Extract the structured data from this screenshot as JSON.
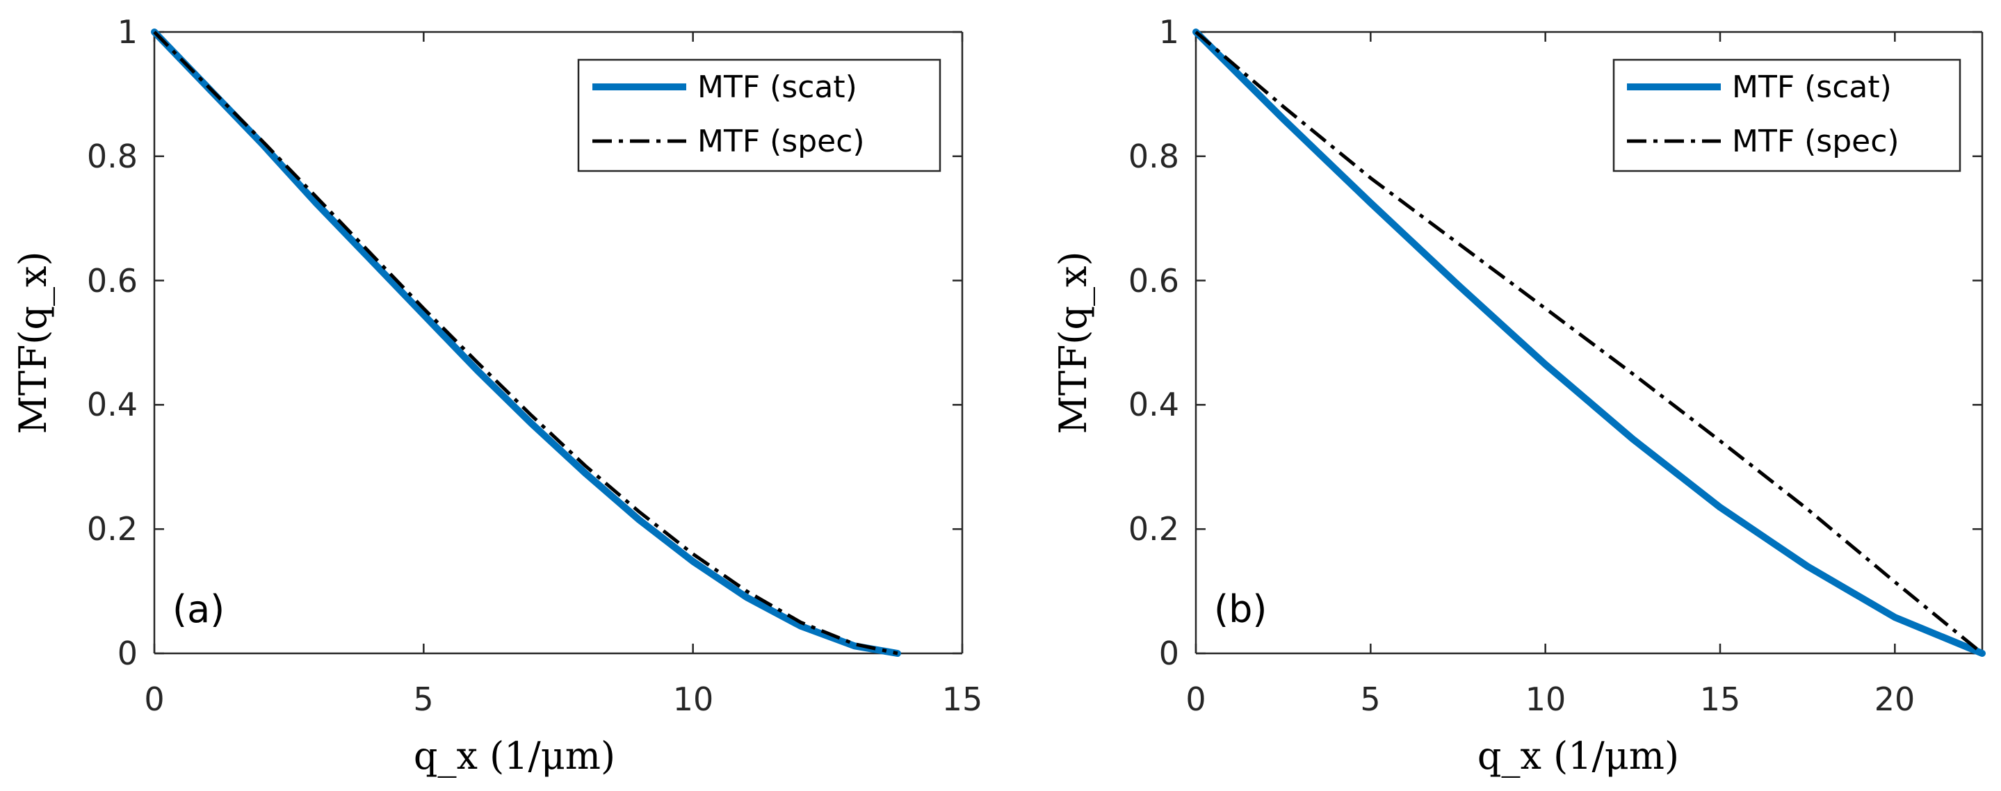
{
  "colors": {
    "scat": "#0072BD",
    "spec": "#000000",
    "axis": "#262626"
  },
  "chart_data": [
    {
      "type": "line",
      "panel_label": "(a)",
      "xlabel": "q_x (1/μm)",
      "ylabel": "MTF(q_x)",
      "xlim": [
        0,
        15
      ],
      "ylim": [
        0,
        1
      ],
      "xticks": [
        0,
        5,
        10,
        15
      ],
      "yticks": [
        0,
        0.2,
        0.4,
        0.6,
        0.8,
        1
      ],
      "xtick_labels": [
        "0",
        "5",
        "10",
        "15"
      ],
      "ytick_labels": [
        "0",
        "0.2",
        "0.4",
        "0.6",
        "0.8",
        "1"
      ],
      "legend": {
        "position": "top-right",
        "entries": [
          "MTF (scat)",
          "MTF (spec)"
        ]
      },
      "series": [
        {
          "name": "MTF (scat)",
          "style": "solid",
          "x": [
            0,
            1,
            2,
            3,
            4,
            5,
            6,
            7,
            8,
            9,
            10,
            11,
            12,
            13,
            13.8
          ],
          "y": [
            1,
            0.91,
            0.82,
            0.725,
            0.635,
            0.545,
            0.455,
            0.37,
            0.29,
            0.215,
            0.148,
            0.09,
            0.044,
            0.012,
            0
          ]
        },
        {
          "name": "MTF (spec)",
          "style": "dashdot",
          "x": [
            0,
            1,
            2,
            3,
            4,
            5,
            6,
            7,
            8,
            9,
            10,
            11,
            12,
            13,
            13.8
          ],
          "y": [
            1,
            0.912,
            0.825,
            0.735,
            0.645,
            0.555,
            0.468,
            0.383,
            0.302,
            0.228,
            0.16,
            0.1,
            0.05,
            0.015,
            0
          ]
        }
      ]
    },
    {
      "type": "line",
      "panel_label": "(b)",
      "xlabel": "q_x (1/μm)",
      "ylabel": "MTF(q_x)",
      "xlim": [
        0,
        22.5
      ],
      "ylim": [
        0,
        1
      ],
      "xticks": [
        0,
        5,
        10,
        15,
        20
      ],
      "yticks": [
        0,
        0.2,
        0.4,
        0.6,
        0.8,
        1
      ],
      "xtick_labels": [
        "0",
        "5",
        "10",
        "15",
        "20"
      ],
      "ytick_labels": [
        "0",
        "0.2",
        "0.4",
        "0.6",
        "0.8",
        "1"
      ],
      "legend": {
        "position": "top-right",
        "entries": [
          "MTF (scat)",
          "MTF (spec)"
        ]
      },
      "series": [
        {
          "name": "MTF (scat)",
          "style": "solid",
          "x": [
            0,
            2.5,
            5,
            7.5,
            10,
            12.5,
            15,
            17.5,
            20,
            22.5
          ],
          "y": [
            1,
            0.86,
            0.725,
            0.593,
            0.465,
            0.345,
            0.235,
            0.14,
            0.058,
            0
          ]
        },
        {
          "name": "MTF (spec)",
          "style": "dashdot",
          "x": [
            0,
            2.5,
            5,
            7.5,
            10,
            12.5,
            15,
            17.5,
            20,
            22.5
          ],
          "y": [
            1,
            0.88,
            0.765,
            0.66,
            0.555,
            0.45,
            0.342,
            0.232,
            0.115,
            0
          ]
        }
      ]
    }
  ]
}
